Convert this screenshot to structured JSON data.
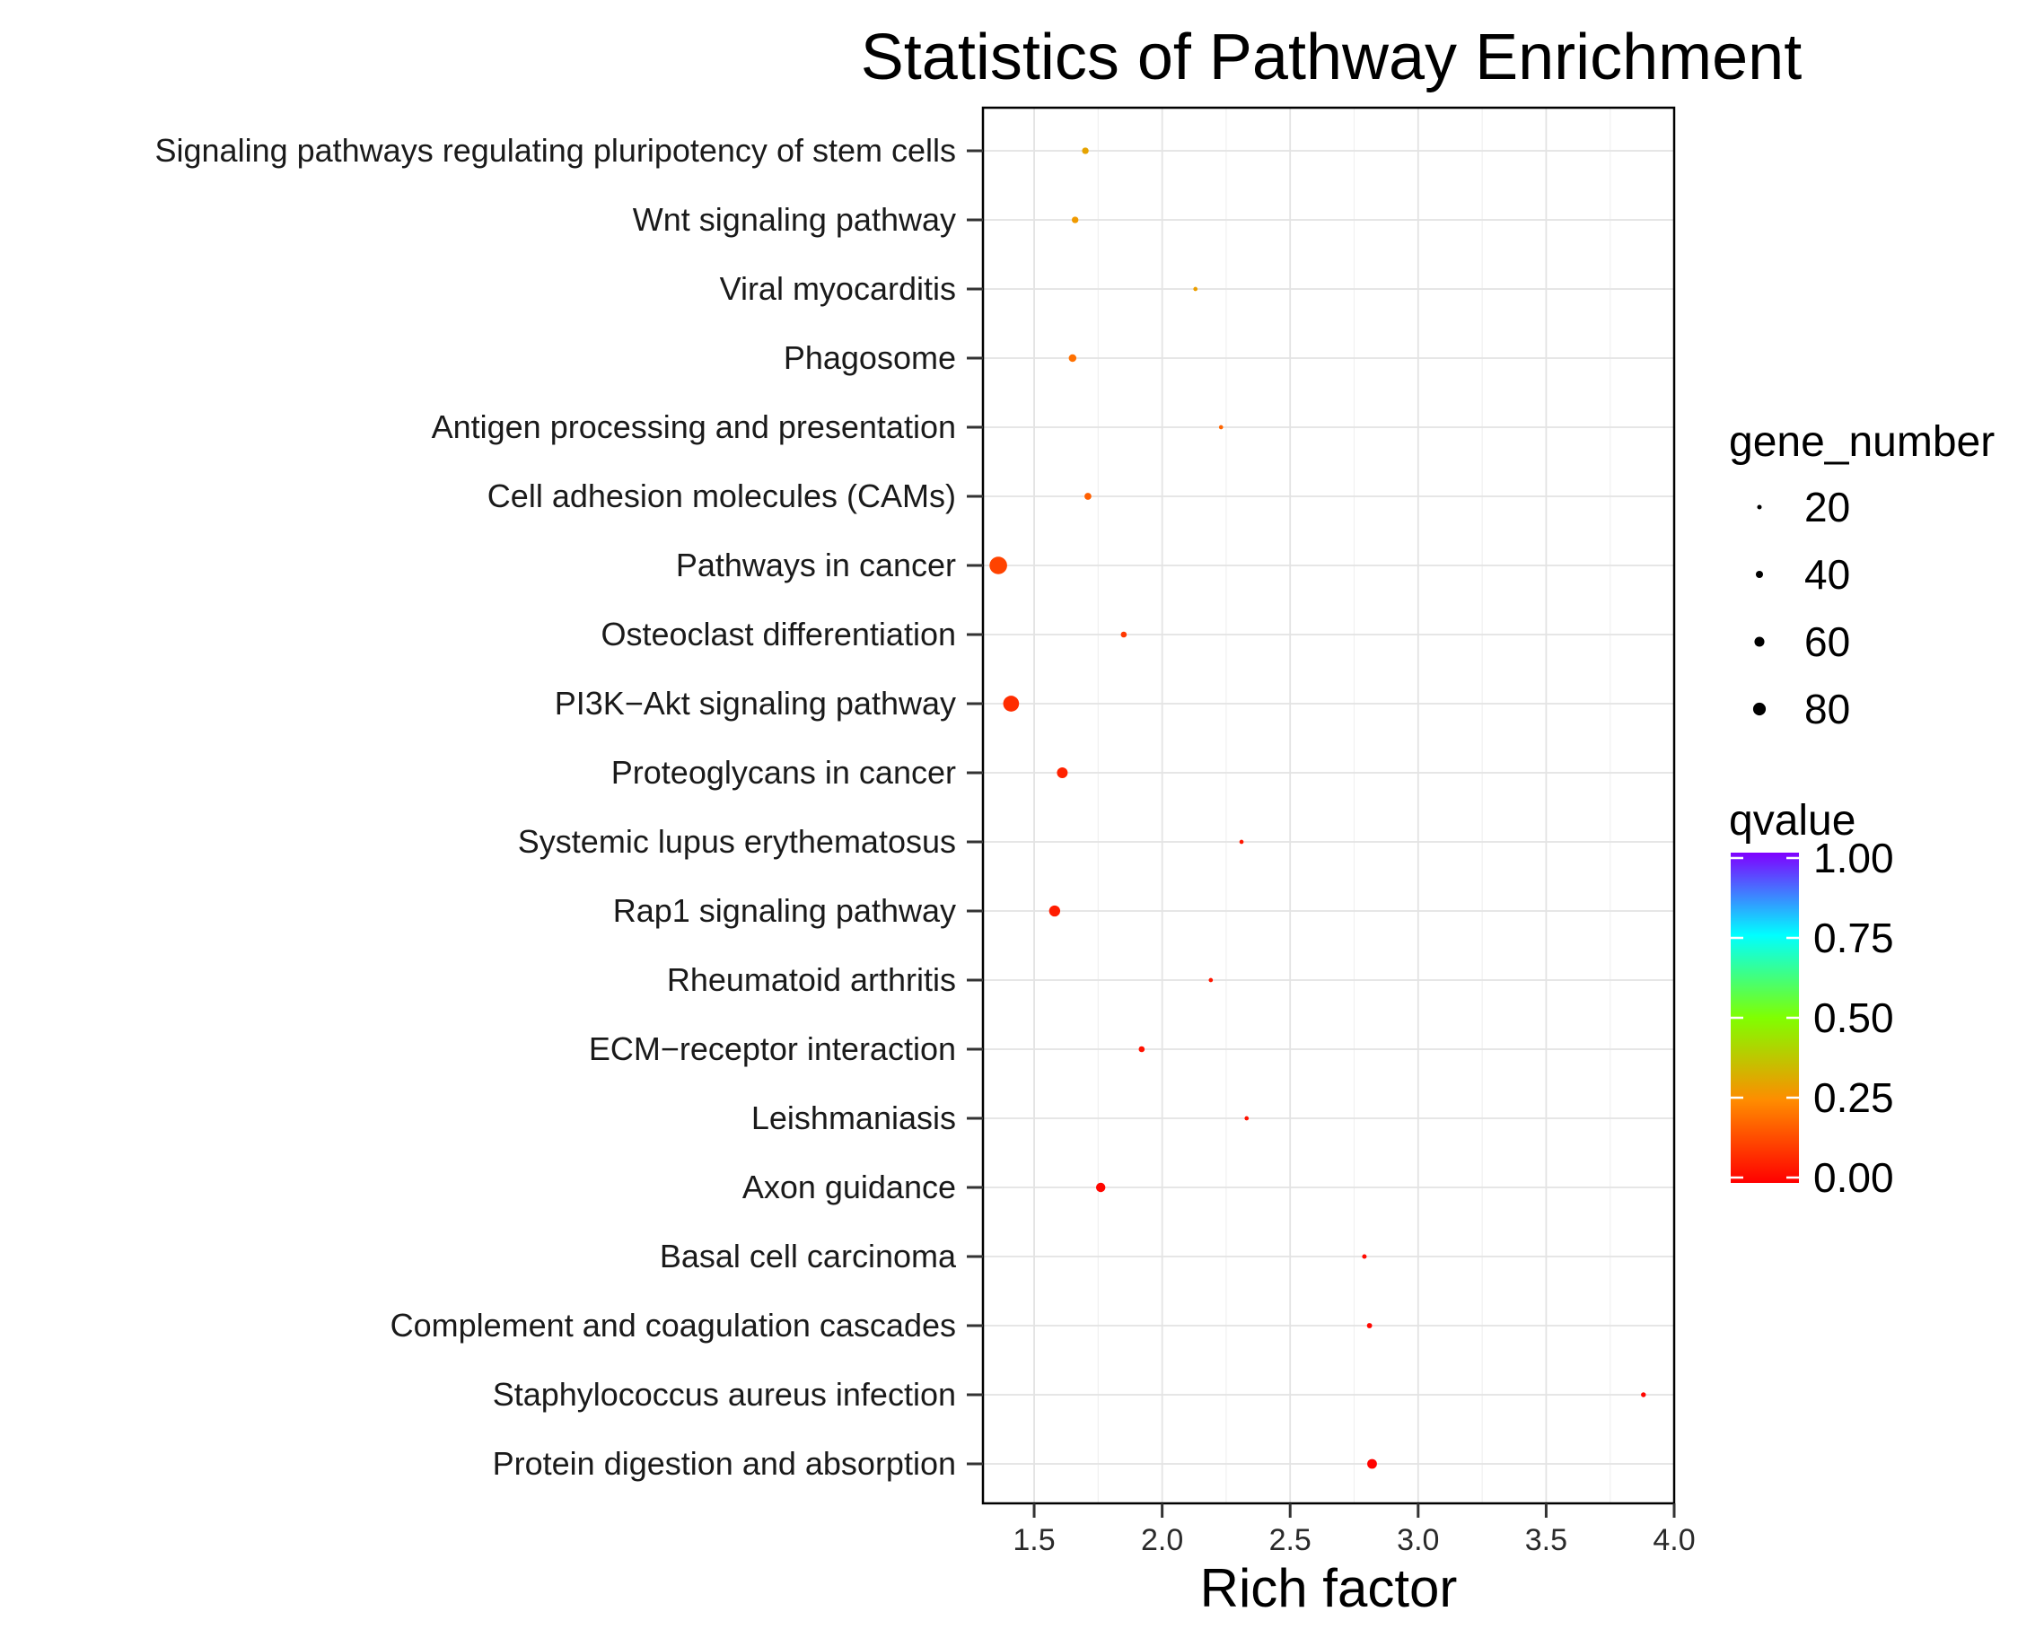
{
  "chart_data": {
    "type": "scatter",
    "title": "Statistics of Pathway Enrichment",
    "xlabel": "Rich factor",
    "ylabel": "",
    "xlim": [
      1.3,
      4.0
    ],
    "xticks": [
      1.5,
      2.0,
      2.5,
      3.0,
      3.5,
      4.0
    ],
    "xtick_labels": [
      "1.5",
      "2.0",
      "2.5",
      "3.0",
      "3.5",
      "4.0"
    ],
    "grid": true,
    "categories": [
      "Signaling pathways regulating pluripotency of stem cells",
      "Wnt signaling pathway",
      "Viral myocarditis",
      "Phagosome",
      "Antigen processing and presentation",
      "Cell adhesion molecules (CAMs)",
      "Pathways in cancer",
      "Osteoclast differentiation",
      "PI3K−Akt signaling pathway",
      "Proteoglycans in cancer",
      "Systemic lupus erythematosus",
      "Rap1 signaling pathway",
      "Rheumatoid arthritis",
      "ECM−receptor interaction",
      "Leishmaniasis",
      "Axon guidance",
      "Basal cell carcinoma",
      "Complement and coagulation cascades",
      "Staphylococcus aureus infection",
      "Protein digestion and absorption"
    ],
    "points": [
      {
        "category": "Signaling pathways regulating pluripotency of stem cells",
        "rich_factor": 1.7,
        "gene_number": 26,
        "qvalue": 0.3
      },
      {
        "category": "Wnt signaling pathway",
        "rich_factor": 1.66,
        "gene_number": 26,
        "qvalue": 0.28
      },
      {
        "category": "Viral myocarditis",
        "rich_factor": 2.13,
        "gene_number": 12,
        "qvalue": 0.29
      },
      {
        "category": "Phagosome",
        "rich_factor": 1.65,
        "gene_number": 32,
        "qvalue": 0.2
      },
      {
        "category": "Antigen processing and presentation",
        "rich_factor": 2.23,
        "gene_number": 12,
        "qvalue": 0.18
      },
      {
        "category": "Cell adhesion molecules (CAMs)",
        "rich_factor": 1.71,
        "gene_number": 28,
        "qvalue": 0.17
      },
      {
        "category": "Pathways in cancer",
        "rich_factor": 1.36,
        "gene_number": 90,
        "qvalue": 0.12
      },
      {
        "category": "Osteoclast differentiation",
        "rich_factor": 1.85,
        "gene_number": 22,
        "qvalue": 0.1
      },
      {
        "category": "PI3K−Akt signaling pathway",
        "rich_factor": 1.41,
        "gene_number": 80,
        "qvalue": 0.08
      },
      {
        "category": "Proteoglycans in cancer",
        "rich_factor": 1.61,
        "gene_number": 50,
        "qvalue": 0.06
      },
      {
        "category": "Systemic lupus erythematosus",
        "rich_factor": 2.31,
        "gene_number": 12,
        "qvalue": 0.04
      },
      {
        "category": "Rap1 signaling pathway",
        "rich_factor": 1.58,
        "gene_number": 52,
        "qvalue": 0.05
      },
      {
        "category": "Rheumatoid arthritis",
        "rich_factor": 2.19,
        "gene_number": 12,
        "qvalue": 0.04
      },
      {
        "category": "ECM−receptor interaction",
        "rich_factor": 1.92,
        "gene_number": 22,
        "qvalue": 0.03
      },
      {
        "category": "Leishmaniasis",
        "rich_factor": 2.33,
        "gene_number": 12,
        "qvalue": 0.03
      },
      {
        "category": "Axon guidance",
        "rich_factor": 1.76,
        "gene_number": 42,
        "qvalue": 0.01
      },
      {
        "category": "Basal cell carcinoma",
        "rich_factor": 2.79,
        "gene_number": 14,
        "qvalue": 0.02
      },
      {
        "category": "Complement and coagulation cascades",
        "rich_factor": 2.81,
        "gene_number": 18,
        "qvalue": 0.01
      },
      {
        "category": "Staphylococcus aureus infection",
        "rich_factor": 3.88,
        "gene_number": 16,
        "qvalue": 0.01
      },
      {
        "category": "Protein digestion and absorption",
        "rich_factor": 2.82,
        "gene_number": 44,
        "qvalue": 0.005
      }
    ],
    "legend_size": {
      "title": "gene_number",
      "labels": [
        "20",
        "40",
        "60",
        "80"
      ],
      "values": [
        20,
        40,
        60,
        80
      ],
      "position": "right"
    },
    "legend_color": {
      "title": "qvalue",
      "labels": [
        "1.00",
        "0.75",
        "0.50",
        "0.25",
        "0.00"
      ],
      "values": [
        1.0,
        0.75,
        0.5,
        0.25,
        0.0
      ],
      "colors_low_to_high": [
        "#ff0000",
        "#ff8c00",
        "#80ff00",
        "#00ffff",
        "#8000ff"
      ],
      "position": "right"
    }
  }
}
